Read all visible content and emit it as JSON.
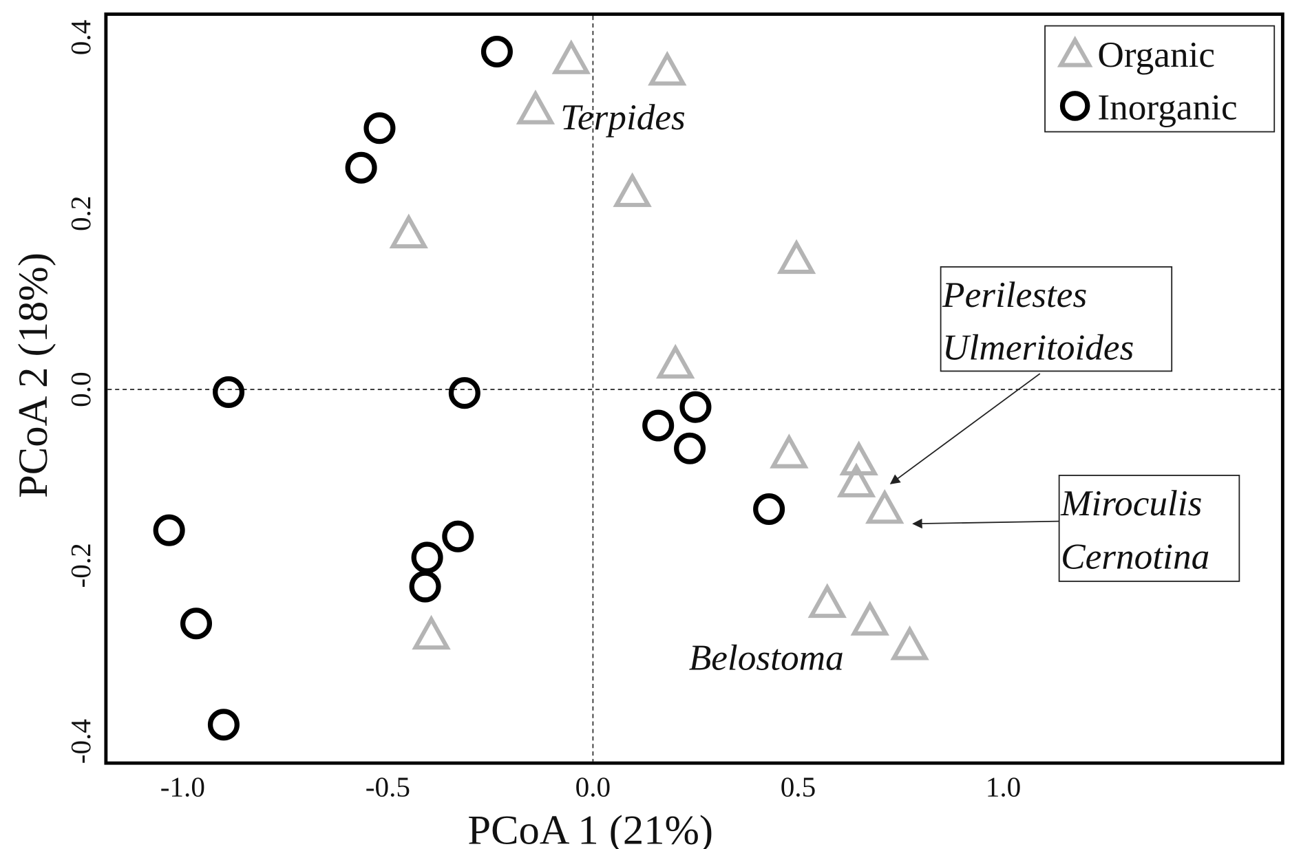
{
  "chart_data": {
    "type": "scatter",
    "xlabel": "PCoA 1 (21%)",
    "ylabel": "PCoA 2 (18%)",
    "xlim": [
      -1.2,
      1.7
    ],
    "ylim": [
      -0.425,
      0.43
    ],
    "xticks": [
      "-1.0",
      "-0.5",
      "0.0",
      "0.5",
      "1.0"
    ],
    "xtick_values": [
      -1.0,
      -0.5,
      0.0,
      0.5,
      1.0
    ],
    "yticks": [
      "0.4",
      "0.2",
      "0.0",
      "-0.2",
      "-0.4"
    ],
    "ytick_values": [
      0.4,
      0.2,
      0.0,
      -0.2,
      -0.4
    ],
    "reference_lines": {
      "x": 0,
      "y": 0
    },
    "legend": {
      "placement": "top-right",
      "entries": [
        "Organic",
        "Inorganic"
      ]
    },
    "series": [
      {
        "name": "Organic",
        "marker": "triangle",
        "color": "#b4b4b4",
        "points": [
          [
            -0.053,
            0.374
          ],
          [
            0.181,
            0.361
          ],
          [
            -0.14,
            0.317
          ],
          [
            0.096,
            0.223
          ],
          [
            -0.449,
            0.176
          ],
          [
            0.496,
            0.147
          ],
          [
            0.201,
            0.028
          ],
          [
            0.478,
            -0.074
          ],
          [
            0.648,
            -0.082
          ],
          [
            0.642,
            -0.107
          ],
          [
            0.711,
            -0.137
          ],
          [
            0.571,
            -0.244
          ],
          [
            0.675,
            -0.264
          ],
          [
            0.772,
            -0.292
          ],
          [
            -0.394,
            -0.28
          ]
        ]
      },
      {
        "name": "Inorganic",
        "marker": "circle",
        "color": "#000000",
        "points": [
          [
            -0.234,
            0.384
          ],
          [
            -0.52,
            0.297
          ],
          [
            -0.565,
            0.252
          ],
          [
            -0.888,
            -0.003
          ],
          [
            -0.313,
            -0.004
          ],
          [
            0.159,
            -0.041
          ],
          [
            0.25,
            -0.02
          ],
          [
            0.236,
            -0.067
          ],
          [
            0.429,
            -0.136
          ],
          [
            -1.033,
            -0.16
          ],
          [
            -0.329,
            -0.167
          ],
          [
            -0.404,
            -0.191
          ],
          [
            -0.409,
            -0.224
          ],
          [
            -0.967,
            -0.266
          ],
          [
            -0.9,
            -0.381
          ]
        ]
      }
    ],
    "annotations": {
      "terpides": "Terpides",
      "belostoma": "Belostoma",
      "box1": [
        "Perilestes",
        "Ulmeritoides"
      ],
      "box2": [
        "Miroculis",
        "Cernotina"
      ]
    }
  }
}
